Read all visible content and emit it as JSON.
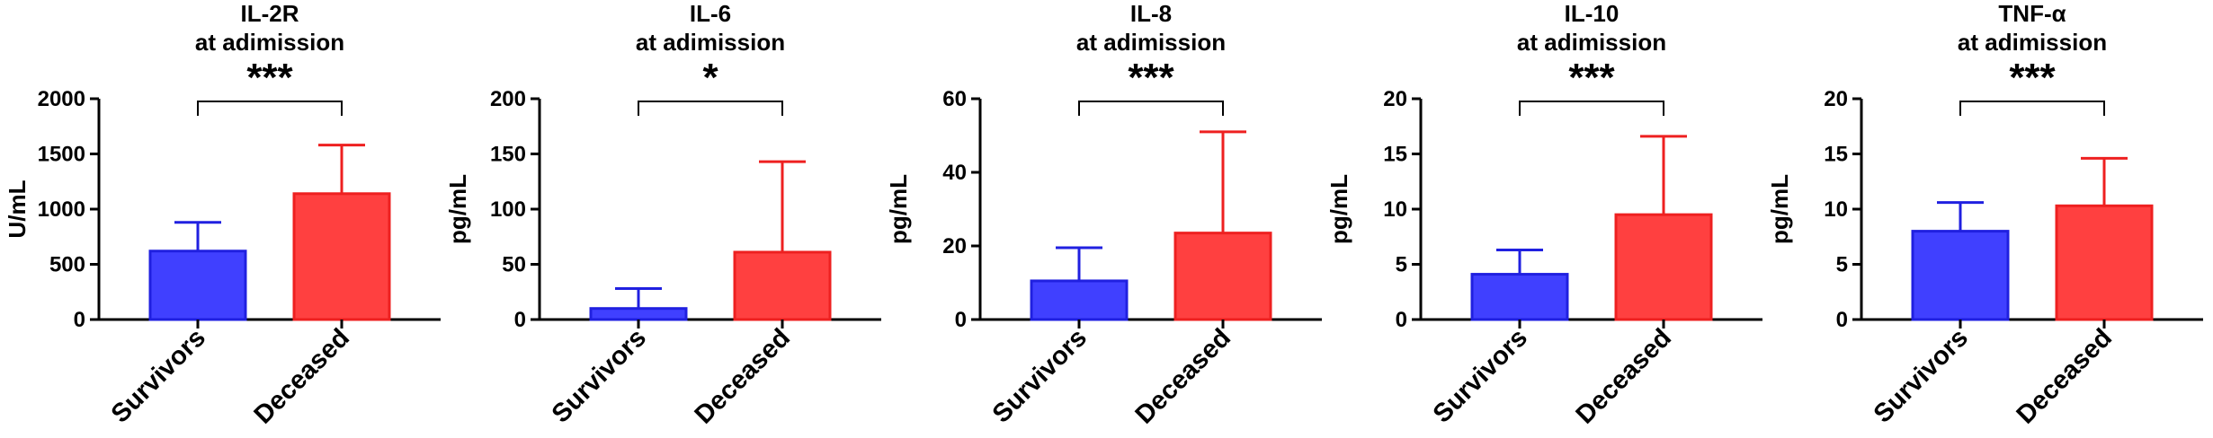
{
  "chart_data": [
    {
      "type": "bar",
      "title_lines": [
        "IL-2R",
        "at adimission"
      ],
      "ylabel": "U/mL",
      "categories": [
        "Survivors",
        "Deceased"
      ],
      "values": [
        620,
        1140
      ],
      "errors": [
        260,
        440
      ],
      "ylim": [
        0,
        2000
      ],
      "yticks": [
        "0",
        "500",
        "1000",
        "1500",
        "2000"
      ],
      "significance": "***",
      "colors": {
        "fill": [
          "#4040ff",
          "#ff4040"
        ],
        "stroke": [
          "#2020e0",
          "#ee2020"
        ]
      }
    },
    {
      "type": "bar",
      "title_lines": [
        "IL-6",
        "at adimission"
      ],
      "ylabel": "pg/mL",
      "categories": [
        "Survivors",
        "Deceased"
      ],
      "values": [
        10,
        61
      ],
      "errors": [
        18,
        82
      ],
      "ylim": [
        0,
        200
      ],
      "yticks": [
        "0",
        "50",
        "100",
        "150",
        "200"
      ],
      "significance": "*",
      "colors": {
        "fill": [
          "#4040ff",
          "#ff4040"
        ],
        "stroke": [
          "#2020e0",
          "#ee2020"
        ]
      }
    },
    {
      "type": "bar",
      "title_lines": [
        "IL-8",
        "at adimission"
      ],
      "ylabel": "pg/mL",
      "categories": [
        "Survivors",
        "Deceased"
      ],
      "values": [
        10.5,
        23.5
      ],
      "errors": [
        9,
        27.5
      ],
      "ylim": [
        0,
        60
      ],
      "yticks": [
        "0",
        "20",
        "40",
        "60"
      ],
      "significance": "***",
      "colors": {
        "fill": [
          "#4040ff",
          "#ff4040"
        ],
        "stroke": [
          "#2020e0",
          "#ee2020"
        ]
      }
    },
    {
      "type": "bar",
      "title_lines": [
        "IL-10",
        "at adimission"
      ],
      "ylabel": "pg/mL",
      "categories": [
        "Survivors",
        "Deceased"
      ],
      "values": [
        4.1,
        9.5
      ],
      "errors": [
        2.2,
        7.1
      ],
      "ylim": [
        0,
        20
      ],
      "yticks": [
        "0",
        "5",
        "10",
        "15",
        "20"
      ],
      "significance": "***",
      "colors": {
        "fill": [
          "#4040ff",
          "#ff4040"
        ],
        "stroke": [
          "#2020e0",
          "#ee2020"
        ]
      }
    },
    {
      "type": "bar",
      "title_lines": [
        "TNF-α",
        "at adimission"
      ],
      "ylabel": "pg/mL",
      "categories": [
        "Survivors",
        "Deceased"
      ],
      "values": [
        8.0,
        10.3
      ],
      "errors": [
        2.6,
        4.3
      ],
      "ylim": [
        0,
        20
      ],
      "yticks": [
        "0",
        "5",
        "10",
        "15",
        "20"
      ],
      "significance": "***",
      "colors": {
        "fill": [
          "#4040ff",
          "#ff4040"
        ],
        "stroke": [
          "#2020e0",
          "#ee2020"
        ]
      }
    }
  ]
}
